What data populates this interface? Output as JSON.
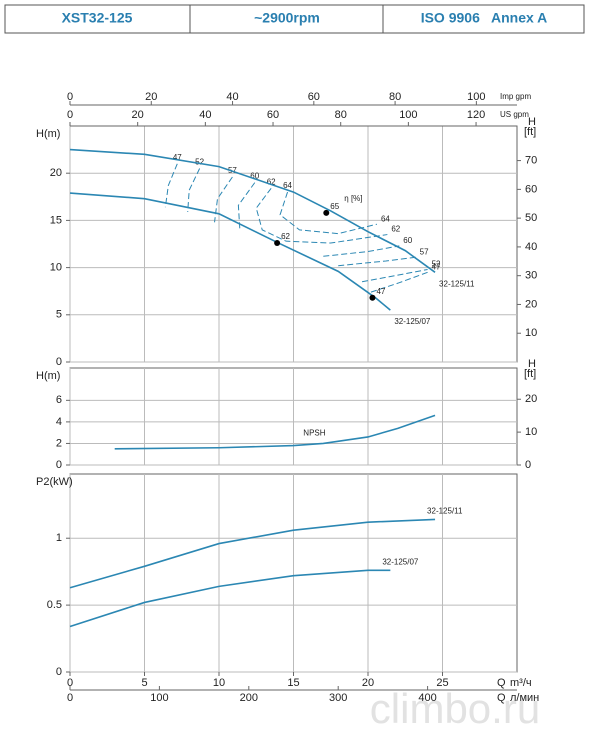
{
  "header": {
    "model": "XST32-125",
    "speed": "~2900rpm",
    "standard": "ISO 9906   Annex A"
  },
  "watermark": "climbo.ru",
  "chart_data": [
    {
      "type": "line",
      "ylabel": "H(m)",
      "y2label": "H",
      "y2unit": "[ft]",
      "xlim": [
        0,
        30
      ],
      "ylim": [
        0,
        25
      ],
      "yticks": [
        0,
        5,
        10,
        15,
        20
      ],
      "y2lim": [
        0,
        82.02
      ],
      "y2ticks": [
        10,
        20,
        30,
        40,
        50,
        60,
        70
      ],
      "top_axes": [
        {
          "label": "Imp gpm",
          "lim": [
            0,
            110.0
          ],
          "ticks": [
            0,
            20,
            40,
            60,
            80,
            100
          ]
        },
        {
          "label": "US gpm",
          "lim": [
            0,
            132.1
          ],
          "ticks": [
            0,
            20,
            40,
            60,
            80,
            100,
            120
          ]
        }
      ],
      "color": "#2b87b3",
      "grid": true,
      "series": [
        {
          "name": "32-125/11",
          "x": [
            0,
            5,
            10,
            15,
            17.5,
            20,
            22.5,
            24.5
          ],
          "values": [
            22.5,
            22.0,
            20.7,
            18.0,
            16.0,
            13.8,
            11.8,
            9.5
          ]
        },
        {
          "name": "32-125/07",
          "x": [
            0,
            5,
            10,
            14,
            18,
            20.5,
            21.5
          ],
          "values": [
            17.9,
            17.3,
            15.7,
            12.6,
            9.6,
            6.8,
            5.5
          ]
        }
      ],
      "efficiency_label": "η [%]",
      "efficiency_curves": [
        {
          "label": "47",
          "x": [
            7.2,
            6.6,
            6.4,
            null,
            20.2,
            22.1,
            24.0
          ],
          "values": [
            21.0,
            18.7,
            16.4,
            null,
            7.4,
            8.4,
            9.5
          ]
        },
        {
          "label": "52",
          "x": [
            8.7,
            8.0,
            7.9,
            null,
            19.6,
            22.0,
            24.0
          ],
          "values": [
            20.5,
            18.2,
            15.9,
            null,
            8.5,
            9.2,
            9.8
          ]
        },
        {
          "label": "57",
          "x": [
            10.9,
            9.9,
            9.7,
            null,
            18.0,
            21.2,
            23.2
          ],
          "values": [
            19.6,
            17.3,
            14.8,
            null,
            10.2,
            10.7,
            11.1
          ]
        },
        {
          "label": "60",
          "x": [
            12.4,
            11.3,
            11.4,
            null,
            17.0,
            20.0,
            22.1
          ],
          "values": [
            19.0,
            16.6,
            14.0,
            null,
            11.2,
            11.7,
            12.3
          ]
        },
        {
          "label": "62",
          "x": [
            13.5,
            12.5,
            12.9,
            14.5,
            17.5,
            21.3
          ],
          "values": [
            18.4,
            16.3,
            14.0,
            12.8,
            12.6,
            13.5
          ]
        },
        {
          "label": "64",
          "x": [
            14.6,
            14.1,
            15.4,
            18.0,
            20.6
          ],
          "values": [
            18.0,
            15.6,
            14.0,
            13.6,
            14.6
          ]
        }
      ],
      "points": [
        {
          "label": "65",
          "x": 17.2,
          "y": 15.8
        },
        {
          "label": "62",
          "x": 13.9,
          "y": 12.6
        },
        {
          "label": "47",
          "x": 20.3,
          "y": 6.8
        }
      ]
    },
    {
      "type": "line",
      "ylabel": "H(m)",
      "y2label": "H",
      "y2unit": "[ft]",
      "xlim": [
        0,
        30
      ],
      "ylim": [
        0,
        9
      ],
      "yticks": [
        0,
        2,
        4,
        6
      ],
      "y2lim": [
        0,
        29.5
      ],
      "y2ticks": [
        0,
        10,
        20
      ],
      "color": "#2b87b3",
      "grid": true,
      "series": [
        {
          "name": "NPSH",
          "x": [
            3,
            10,
            15,
            17,
            20,
            22,
            24.5
          ],
          "values": [
            1.5,
            1.6,
            1.8,
            2.0,
            2.6,
            3.4,
            4.6
          ]
        }
      ]
    },
    {
      "type": "line",
      "ylabel": "P2(kW)",
      "xlim": [
        0,
        30
      ],
      "xticks": [
        0,
        5,
        10,
        15,
        20,
        25
      ],
      "xlabel": "Q",
      "xunit": "m³/ч",
      "ylim": [
        0,
        1.48
      ],
      "yticks": [
        0,
        0.5,
        1
      ],
      "color": "#2b87b3",
      "grid": true,
      "bottom_axis": {
        "label": "Q",
        "unit": "л/мин",
        "lim": [
          0,
          500
        ],
        "ticks": [
          0,
          100,
          200,
          300,
          400
        ]
      },
      "series": [
        {
          "name": "32-125/11",
          "x": [
            0,
            5,
            10,
            15,
            20,
            24.5
          ],
          "values": [
            0.63,
            0.79,
            0.96,
            1.06,
            1.12,
            1.14
          ]
        },
        {
          "name": "32-125/07",
          "x": [
            0,
            5,
            10,
            15,
            20,
            21.5
          ],
          "values": [
            0.34,
            0.52,
            0.64,
            0.72,
            0.76,
            0.76
          ]
        }
      ]
    }
  ]
}
